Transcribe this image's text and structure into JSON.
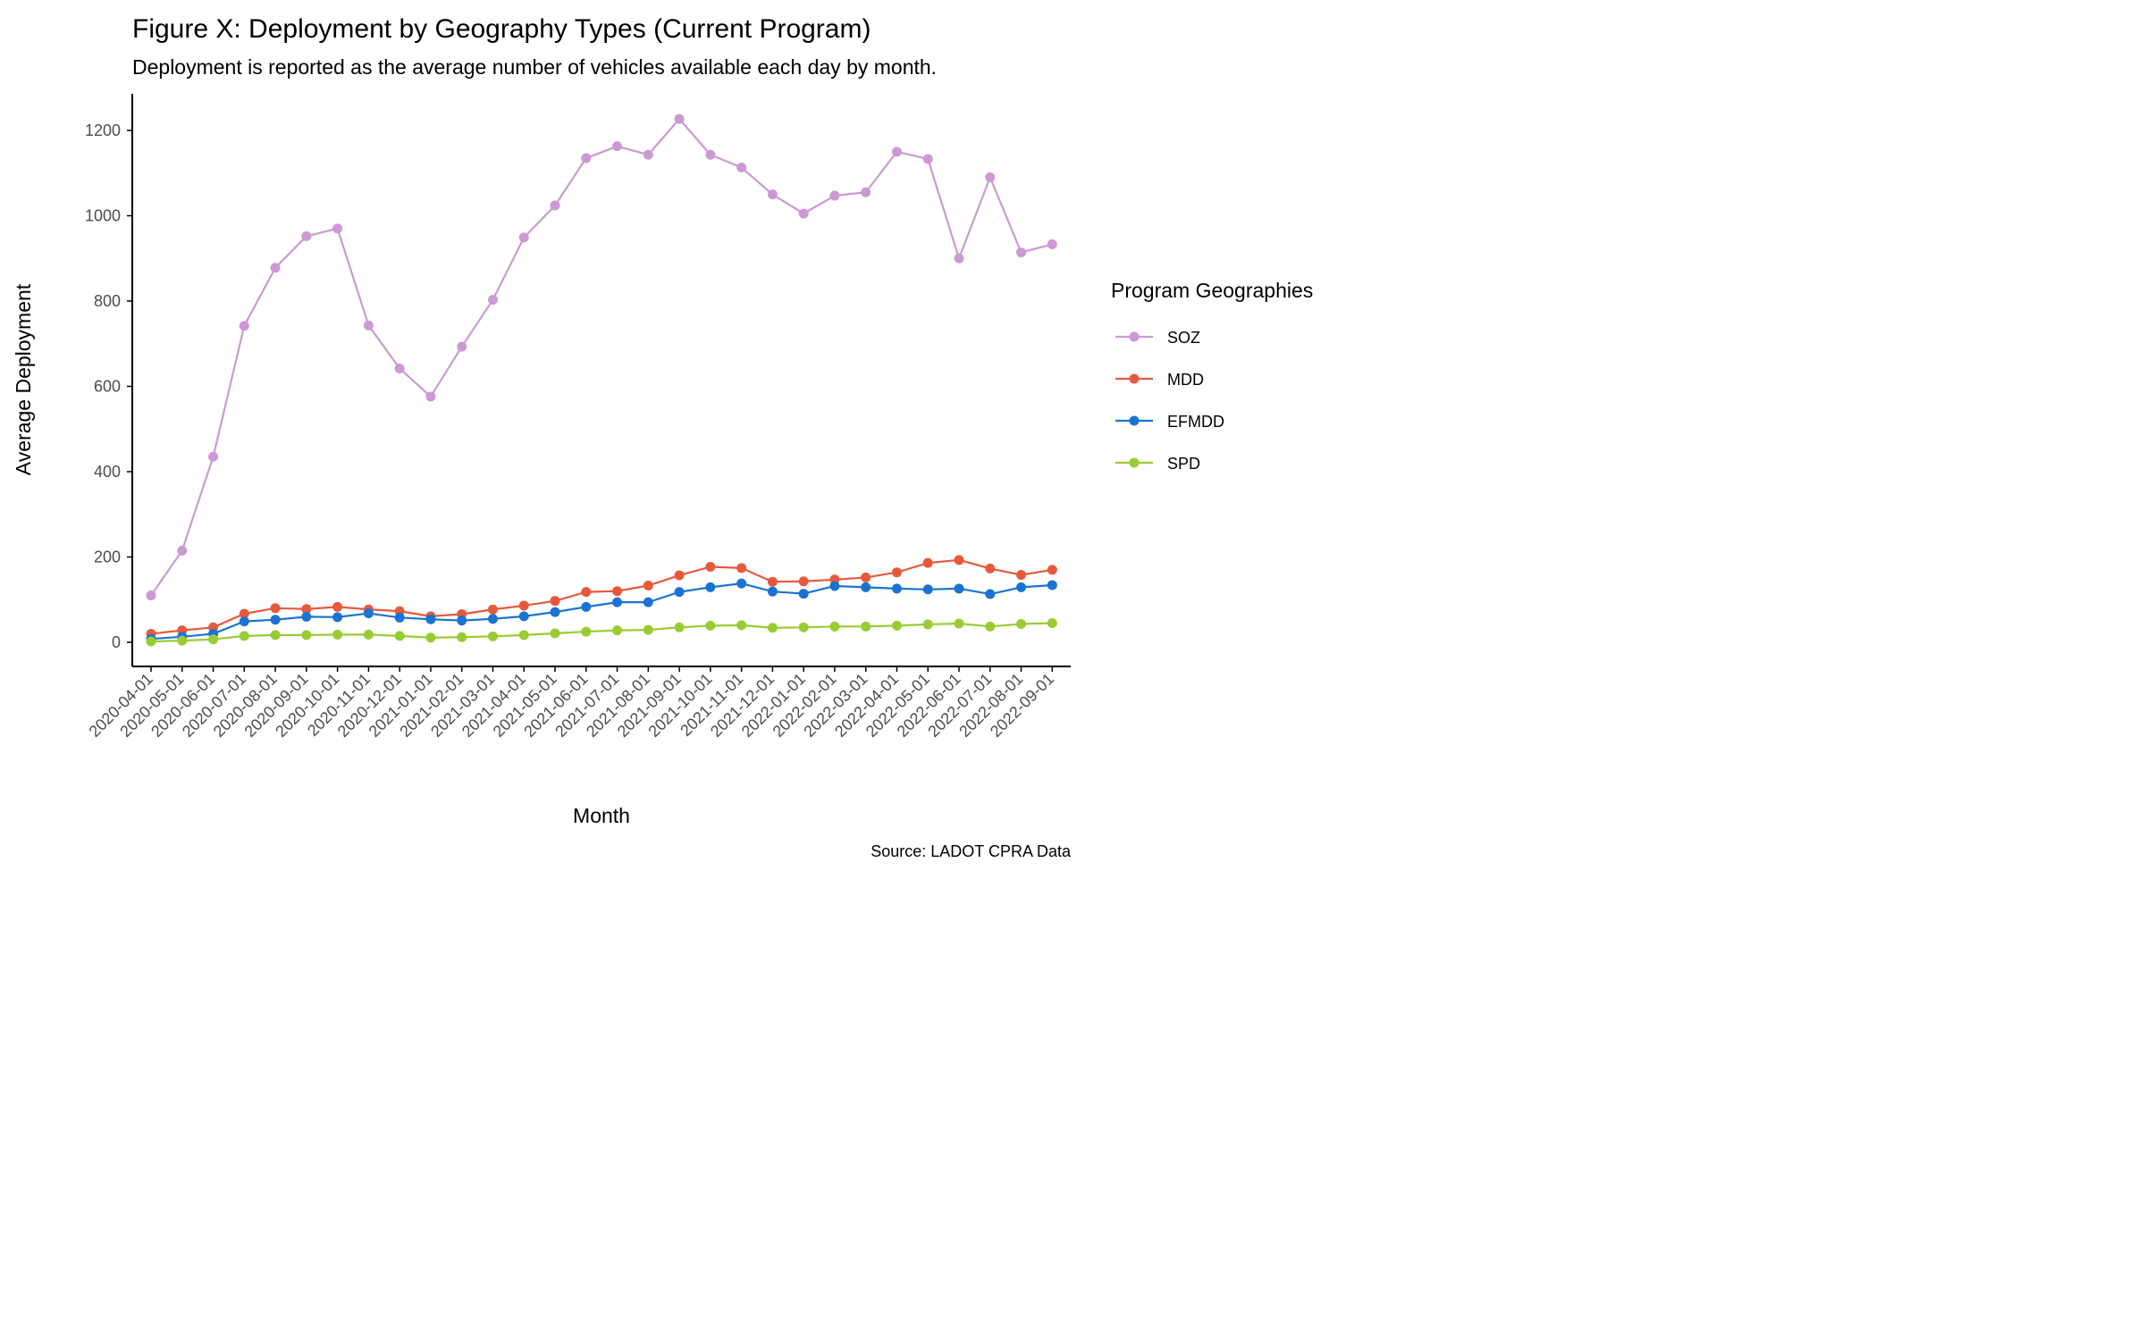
{
  "chart_data": {
    "type": "line",
    "title": "Figure X: Deployment by Geography Types (Current Program)",
    "subtitle": "Deployment is reported as the average number of vehicles available each day by month.",
    "xlabel": "Month",
    "ylabel": "Average Deployment",
    "caption": "Source: LADOT CPRA Data",
    "legend_title": "Program Geographies",
    "legend_position": "right",
    "grid": false,
    "ylim": [
      -55,
      1285
    ],
    "yticks": [
      0,
      200,
      400,
      600,
      800,
      1000,
      1200
    ],
    "x": [
      "2020-04-01",
      "2020-05-01",
      "2020-06-01",
      "2020-07-01",
      "2020-08-01",
      "2020-09-01",
      "2020-10-01",
      "2020-11-01",
      "2020-12-01",
      "2021-01-01",
      "2021-02-01",
      "2021-03-01",
      "2021-04-01",
      "2021-05-01",
      "2021-06-01",
      "2021-07-01",
      "2021-08-01",
      "2021-09-01",
      "2021-10-01",
      "2021-11-01",
      "2021-12-01",
      "2022-01-01",
      "2022-02-01",
      "2022-03-01",
      "2022-04-01",
      "2022-05-01",
      "2022-06-01",
      "2022-07-01",
      "2022-08-01",
      "2022-09-01"
    ],
    "series": [
      {
        "name": "SOZ",
        "color": "#cc99d4",
        "values": [
          110,
          215,
          435,
          742,
          878,
          952,
          970,
          743,
          642,
          576,
          693,
          803,
          949,
          1024,
          1135,
          1163,
          1143,
          1227,
          1143,
          1113,
          1050,
          1005,
          1047,
          1055,
          1150,
          1133,
          900,
          1090,
          914,
          933
        ]
      },
      {
        "name": "MDD",
        "color": "#e8593c",
        "values": [
          20,
          28,
          35,
          67,
          80,
          78,
          83,
          77,
          73,
          61,
          66,
          77,
          86,
          97,
          118,
          120,
          133,
          157,
          177,
          174,
          142,
          143,
          147,
          152,
          164,
          186,
          193,
          173,
          158,
          170
        ]
      },
      {
        "name": "EFMDD",
        "color": "#1a73d4",
        "values": [
          8,
          13,
          20,
          49,
          53,
          60,
          59,
          68,
          58,
          54,
          51,
          55,
          61,
          71,
          83,
          94,
          94,
          118,
          129,
          138,
          119,
          114,
          132,
          129,
          126,
          124,
          126,
          113,
          129,
          134
        ]
      },
      {
        "name": "SPD",
        "color": "#99cc33",
        "values": [
          2,
          4,
          7,
          15,
          17,
          17,
          18,
          18,
          15,
          11,
          12,
          14,
          17,
          21,
          25,
          28,
          29,
          35,
          39,
          40,
          34,
          35,
          37,
          37,
          39,
          42,
          44,
          37,
          43,
          45
        ]
      }
    ]
  }
}
